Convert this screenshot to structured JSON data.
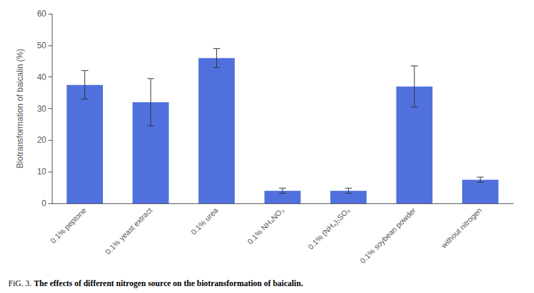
{
  "chart_data": {
    "type": "bar",
    "categories": [
      "0.1% peptone",
      "0.1% yeast extract",
      "0.1% urea",
      "0.1% NH₄NO₃",
      "0.1% (NH₄)₂SO₄",
      "0.1% soybean powder",
      "without nitrogen"
    ],
    "values": [
      37.5,
      32.0,
      46.0,
      4.0,
      4.0,
      37.0,
      7.5
    ],
    "errors": [
      4.5,
      7.5,
      3.0,
      0.8,
      0.8,
      6.5,
      0.8
    ],
    "ylabel": "Biotransformation of baicalin (%)",
    "ylim": [
      0,
      60
    ],
    "yticks": [
      0,
      10,
      20,
      30,
      40,
      50,
      60
    ],
    "grid": false,
    "annotations": [
      "FiG. 3.",
      "The effects of different nitrogen source on the biotransformation of baicalin."
    ]
  }
}
